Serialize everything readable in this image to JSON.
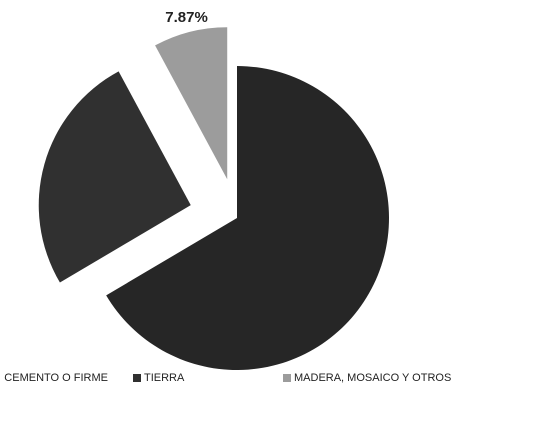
{
  "chart_data": {
    "type": "pie",
    "categories": [
      "CEMENTO O FIRME",
      "TIERRA",
      "MADERA, MOSAICO Y OTROS"
    ],
    "values": [
      66.5,
      25.63,
      7.87
    ],
    "value_labels": [
      null,
      null,
      "7.87%"
    ],
    "colors": [
      "#262626",
      "#303030",
      "#9c9c9c"
    ],
    "legend": "bottom"
  }
}
